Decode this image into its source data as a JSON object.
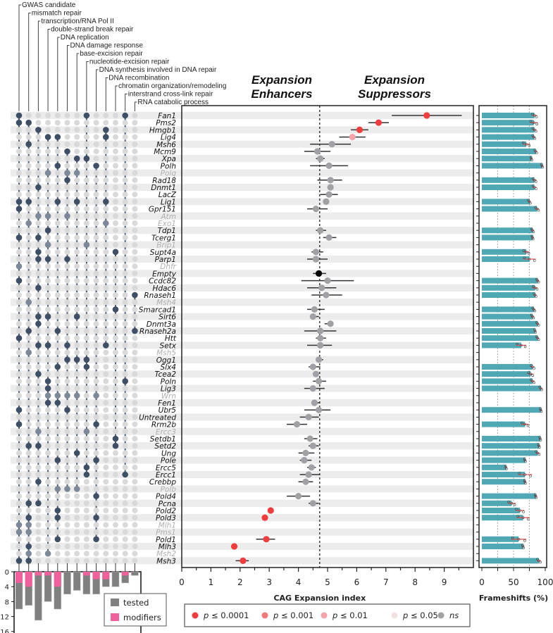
{
  "chart_data": {
    "type": "scatter",
    "title_left": "Expansion Enhancers",
    "title_right": "Expansion Suppressors",
    "xlabel": "CAG Expansion index",
    "xlim": [
      0,
      9.8
    ],
    "xticks": [
      "0",
      "1",
      "2",
      "3",
      "4",
      "5",
      "6",
      "7",
      "8",
      "9"
    ],
    "reference_line": 4.73,
    "frameshift": {
      "xlabel": "Frameshifts (%)",
      "xlim": [
        0,
        100
      ],
      "xticks": [
        "0",
        "50",
        "100"
      ],
      "gridlines": [
        25,
        50,
        75
      ]
    },
    "categories": [
      "GWAS candidate",
      "mismatch repair",
      "transcription/RNA Pol II",
      "double-strand break repair",
      "DNA replication",
      "DNA damage response",
      "base-excision repair",
      "nucleotide-excision repair",
      "DNA synthesis involved in DNA repair",
      "DNA recombination",
      "chromatin organization/remodeling",
      "interstrand cross-link repair",
      "RNA catabolic process"
    ],
    "row_fields": [
      "gene",
      "faded",
      "categories",
      "index",
      "ci_low",
      "ci_high",
      "significance",
      "frameshift_pct",
      "frameshift_sd"
    ],
    "rows": [
      [
        "Fan1",
        false,
        [
          0,
          7,
          11
        ],
        8.4,
        7.2,
        9.6,
        "p4",
        83,
        4
      ],
      [
        "Pms2",
        false,
        [
          0,
          1
        ],
        6.75,
        6.4,
        7.1,
        "p4",
        82,
        6
      ],
      [
        "Hmgb1",
        false,
        [
          2,
          9
        ],
        6.1,
        5.8,
        6.4,
        "p4",
        83,
        3
      ],
      [
        "Lig4",
        false,
        [
          3,
          4,
          9
        ],
        5.85,
        5.4,
        6.3,
        "p2",
        82,
        2
      ],
      [
        "Msh6",
        false,
        [
          1
        ],
        5.15,
        4.4,
        5.8,
        "ns",
        70,
        6
      ],
      [
        "Mcm9",
        false,
        [
          5
        ],
        4.65,
        4.2,
        5.1,
        "ns",
        85,
        2
      ],
      [
        "Xpa",
        false,
        [
          6,
          7
        ],
        4.75,
        4.6,
        4.9,
        "ns",
        78,
        1
      ],
      [
        "Polh",
        false,
        [
          4,
          8
        ],
        5.05,
        4.4,
        5.7,
        "ns",
        95,
        1
      ],
      [
        "Polq",
        true,
        [
          3,
          5,
          6
        ],
        null,
        null,
        null,
        "",
        null,
        null
      ],
      [
        "Rad18",
        false,
        [
          5
        ],
        5.1,
        4.65,
        5.5,
        "ns",
        83,
        3
      ],
      [
        "Dnmt1",
        false,
        [
          2
        ],
        5.1,
        null,
        null,
        "ns",
        83,
        3
      ],
      [
        "LacZ",
        false,
        [],
        5.05,
        4.75,
        5.35,
        "ns",
        null,
        null
      ],
      [
        "Lig1",
        false,
        [
          0,
          1,
          4,
          6,
          9
        ],
        4.95,
        4.85,
        5.05,
        "ns",
        75,
        2
      ],
      [
        "Gpr151",
        false,
        [
          0
        ],
        4.6,
        4.3,
        5.0,
        "ns",
        87,
        3
      ],
      [
        "Atm",
        true,
        [
          2,
          3,
          5
        ],
        null,
        null,
        null,
        "",
        null,
        null
      ],
      [
        "Exo1",
        true,
        [
          1,
          9
        ],
        null,
        null,
        null,
        "",
        null,
        null
      ],
      [
        "Tdp1",
        false,
        [
          3
        ],
        4.75,
        4.6,
        4.95,
        "ns",
        80,
        2
      ],
      [
        "Tcerg1",
        false,
        [
          0,
          2
        ],
        5.05,
        4.85,
        5.3,
        "ns",
        80,
        1
      ],
      [
        "Brip1",
        true,
        [
          3,
          7
        ],
        null,
        null,
        null,
        "",
        null,
        null
      ],
      [
        "Supt4a",
        false,
        [
          2,
          10
        ],
        4.6,
        4.45,
        4.85,
        "ns",
        70,
        5
      ],
      [
        "Parp1",
        false,
        [
          2,
          3,
          5
        ],
        4.6,
        4.3,
        5.0,
        "ns",
        75,
        10
      ],
      [
        "Dhfr",
        true,
        [
          0
        ],
        null,
        null,
        null,
        "",
        null,
        null
      ],
      [
        "Empty",
        false,
        [],
        4.7,
        4.5,
        4.95,
        "ctrl",
        null,
        null
      ],
      [
        "Ccdc82",
        false,
        [
          0
        ],
        5.0,
        4.1,
        5.9,
        "ns",
        88,
        2
      ],
      [
        "Hdac6",
        false,
        [
          2
        ],
        4.8,
        4.3,
        5.3,
        "ns",
        84,
        4
      ],
      [
        "Rnaseh1",
        false,
        [
          12
        ],
        4.95,
        4.45,
        5.5,
        "ns",
        84,
        2
      ],
      [
        "Msh4",
        true,
        [
          1
        ],
        null,
        null,
        null,
        "",
        null,
        null
      ],
      [
        "Smarcad1",
        false,
        [
          10
        ],
        4.55,
        4.3,
        4.9,
        "ns",
        82,
        2
      ],
      [
        "Sirt6",
        false,
        [
          2,
          3,
          6
        ],
        4.5,
        4.4,
        4.7,
        "ns",
        80,
        2
      ],
      [
        "Dnmt3a",
        false,
        [
          2
        ],
        5.1,
        4.9,
        5.2,
        "ns",
        88,
        2
      ],
      [
        "Rnaseh2a",
        false,
        [
          1,
          4,
          12
        ],
        4.75,
        4.2,
        5.3,
        "ns",
        84,
        1
      ],
      [
        "Htt",
        false,
        [
          0
        ],
        4.75,
        4.6,
        4.95,
        "ns",
        88,
        2
      ],
      [
        "Setx",
        false,
        [
          2,
          3,
          5,
          9
        ],
        4.75,
        4.3,
        5.15,
        "ns",
        62,
        8
      ],
      [
        "Msh5",
        true,
        [
          1
        ],
        null,
        null,
        null,
        "",
        null,
        null
      ],
      [
        "Ogg1",
        false,
        [
          5,
          6,
          7
        ],
        4.7,
        4.6,
        4.85,
        "ns",
        null,
        null
      ],
      [
        "Slx4",
        false,
        [
          4,
          7
        ],
        4.5,
        4.35,
        4.75,
        "ns",
        80,
        3
      ],
      [
        "Tcea2",
        false,
        [
          2
        ],
        4.6,
        null,
        null,
        "ns",
        77,
        4
      ],
      [
        "Poln",
        false,
        [
          3,
          11
        ],
        4.7,
        4.5,
        4.95,
        "ns",
        80,
        3
      ],
      [
        "Lig3",
        false,
        [
          3
        ],
        4.5,
        4.2,
        4.9,
        "ns",
        93,
        2
      ],
      [
        "Wrn",
        true,
        [
          3,
          4,
          5,
          6,
          8
        ],
        null,
        null,
        null,
        "",
        null,
        null
      ],
      [
        "Fen1",
        false,
        [
          3,
          4
        ],
        4.55,
        4.45,
        4.75,
        "ns",
        null,
        null
      ],
      [
        "Ubr5",
        false,
        [
          0,
          5
        ],
        4.7,
        4.2,
        5.1,
        "ns",
        93,
        1
      ],
      [
        "Untreated",
        false,
        [],
        4.35,
        4.05,
        4.7,
        "ns",
        null,
        null
      ],
      [
        "Rrm2b",
        false,
        [
          0,
          8
        ],
        3.95,
        3.6,
        4.3,
        "ns",
        68,
        6
      ],
      [
        "Ercc3",
        true,
        [
          2,
          7
        ],
        null,
        null,
        null,
        "",
        null,
        null
      ],
      [
        "Setdb1",
        false,
        [
          10
        ],
        4.4,
        4.2,
        4.65,
        "ns",
        92,
        1
      ],
      [
        "Setd2",
        false,
        [
          1,
          2,
          10
        ],
        4.5,
        4.35,
        4.7,
        "ns",
        90,
        1
      ],
      [
        "Ung",
        false,
        [
          6
        ],
        4.25,
        4.0,
        4.55,
        "ns",
        88,
        3
      ],
      [
        "Pole",
        false,
        [
          4,
          8
        ],
        4.2,
        4.05,
        4.45,
        "ns",
        68,
        1
      ],
      [
        "Ercc5",
        false,
        [
          7
        ],
        4.45,
        4.3,
        4.6,
        "ns",
        38,
        1
      ],
      [
        "Ercc1",
        false,
        [
          7,
          11
        ],
        4.35,
        4.05,
        4.75,
        "ns",
        68,
        11
      ],
      [
        "Crebbp",
        false,
        [
          2
        ],
        4.25,
        4.0,
        4.5,
        "ns",
        68,
        1
      ],
      [
        "Polb",
        true,
        [
          4,
          5,
          6
        ],
        null,
        null,
        null,
        "",
        null,
        null
      ],
      [
        "Pold4",
        false,
        [
          8
        ],
        4.0,
        3.6,
        4.4,
        "ns",
        85,
        1
      ],
      [
        "Pcna",
        false,
        [
          1,
          2
        ],
        4.5,
        4.35,
        4.7,
        "ns",
        47,
        6
      ],
      [
        "Pold2",
        false,
        [
          4
        ],
        3.05,
        null,
        null,
        "p4",
        60,
        7
      ],
      [
        "Pold3",
        false,
        [
          1,
          4,
          8
        ],
        2.85,
        null,
        null,
        "p4",
        65,
        10
      ],
      [
        "Mlh1",
        true,
        [
          0,
          1
        ],
        null,
        null,
        null,
        "",
        null,
        null
      ],
      [
        "Pms1",
        true,
        [
          0,
          1
        ],
        null,
        null,
        null,
        "",
        null,
        null
      ],
      [
        "Pold1",
        false,
        [
          4,
          8
        ],
        2.9,
        2.55,
        3.2,
        "p4",
        58,
        12
      ],
      [
        "Mlh3",
        false,
        [
          1
        ],
        1.8,
        null,
        null,
        "p4",
        65,
        1
      ],
      [
        "Msh2",
        true,
        [
          1,
          3
        ],
        null,
        null,
        null,
        "",
        null,
        null
      ],
      [
        "Msh3",
        false,
        [
          0,
          1
        ],
        2.1,
        1.85,
        2.3,
        "p4",
        90,
        3
      ]
    ],
    "category_counts": {
      "type": "bar",
      "ylim": [
        0,
        16
      ],
      "yticks": [
        "0",
        "4",
        "8",
        "12",
        "16"
      ],
      "tested": [
        10,
        9,
        13,
        8,
        10,
        6,
        5,
        6,
        6,
        4,
        4,
        3,
        1
      ],
      "modifiers": [
        3,
        4,
        1,
        1,
        4,
        0,
        0,
        1,
        2,
        2,
        0,
        1,
        0
      ],
      "legend": {
        "tested": "tested",
        "modifiers": "modifiers"
      }
    },
    "legend": [
      {
        "key": "p4",
        "prefix": "p",
        "label": " ≤ 0.0001",
        "color": "#f03c3c"
      },
      {
        "key": "p3",
        "prefix": "p",
        "label": " ≤ 0.001",
        "color": "#f07878"
      },
      {
        "key": "p2",
        "prefix": "p",
        "label": " ≤ 0.01",
        "color": "#f4a3a6"
      },
      {
        "key": "p1",
        "prefix": "p",
        "label": " ≤ 0.05",
        "color": "#f3dfe0"
      },
      {
        "key": "ns",
        "prefix": "",
        "label": "ns",
        "color": "#a0a0a5"
      }
    ],
    "colors": {
      "ctrl": "#000000",
      "dot_on": "#3e4f66",
      "dot_faded": "#7d8898",
      "dot_off": "#d9d9d9",
      "bar": "#4fa8b4",
      "err": "#e05555",
      "tested": "#808080",
      "modifiers": "#f0609a"
    }
  }
}
